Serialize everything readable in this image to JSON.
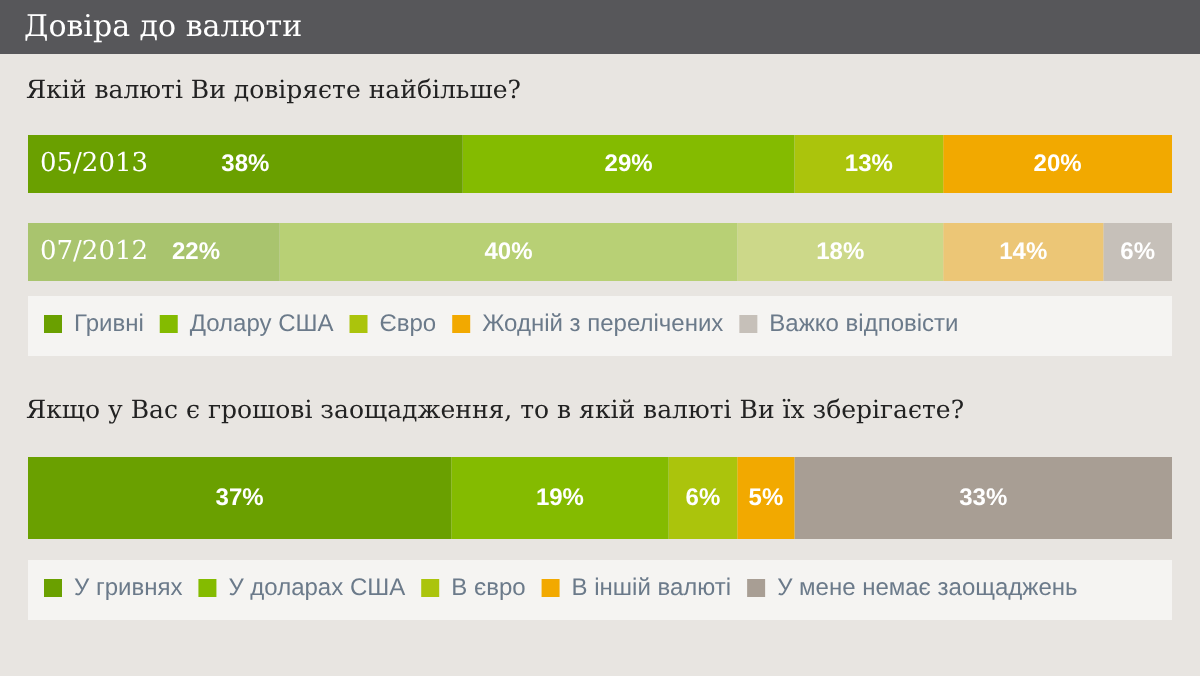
{
  "chart_data": [
    {
      "type": "bar",
      "orientation": "horizontal",
      "stacked": true,
      "title": "Довіра до валюти",
      "subtitle": "Якій валюті Ви довіряєте найбільше?",
      "categories": [
        "05/2013",
        "07/2012"
      ],
      "xlim": [
        0,
        100
      ],
      "tick_labels": "y",
      "grid": false,
      "legend": "bottom",
      "series": [
        {
          "name": "Гривні",
          "color": "#6aa000",
          "colors": [
            "#6aa000",
            "#a9c46e"
          ],
          "values": [
            38,
            22
          ],
          "value_labels": [
            "38%",
            "22%"
          ]
        },
        {
          "name": "Долару США",
          "color": "#84bb00",
          "colors": [
            "#84bb00",
            "#b8d075"
          ],
          "values": [
            29,
            40
          ],
          "value_labels": [
            "29%",
            "40%"
          ]
        },
        {
          "name": "Євро",
          "color": "#abc40c",
          "colors": [
            "#abc40c",
            "#ccd889"
          ],
          "values": [
            13,
            18
          ],
          "value_labels": [
            "13%",
            "18%"
          ]
        },
        {
          "name": "Жодній з перелічених",
          "color": "#f2a900",
          "colors": [
            "#f2a900",
            "#ecc676"
          ],
          "values": [
            20,
            14
          ],
          "value_labels": [
            "20%",
            "14%"
          ]
        },
        {
          "name": "Важко відповісти",
          "color": "#c6c0b9",
          "colors": [
            "#c6c0b9",
            "#c6c0b9"
          ],
          "values": [
            null,
            6
          ],
          "value_labels": [
            null,
            "6%"
          ]
        }
      ]
    },
    {
      "type": "bar",
      "orientation": "horizontal",
      "stacked": true,
      "title": "Якщо у Вас є грошові заощадження, то в якій валюті Ви їх зберігаєте?",
      "categories": [
        null
      ],
      "xlim": [
        0,
        100
      ],
      "tick_labels": false,
      "grid": false,
      "legend": "bottom",
      "series": [
        {
          "name": "У гривнях",
          "color": "#6aa000",
          "values": [
            37
          ],
          "value_labels": [
            "37%"
          ]
        },
        {
          "name": "У доларах США",
          "color": "#84bb00",
          "values": [
            19
          ],
          "value_labels": [
            "19%"
          ]
        },
        {
          "name": "В євро",
          "color": "#abc40c",
          "values": [
            6
          ],
          "value_labels": [
            "6%"
          ]
        },
        {
          "name": "В іншій валюті",
          "color": "#f2a900",
          "values": [
            5
          ],
          "value_labels": [
            "5%"
          ]
        },
        {
          "name": "У мене немає заощаджень",
          "color": "#a89e94",
          "values": [
            33
          ],
          "value_labels": [
            "33%"
          ]
        }
      ]
    }
  ]
}
